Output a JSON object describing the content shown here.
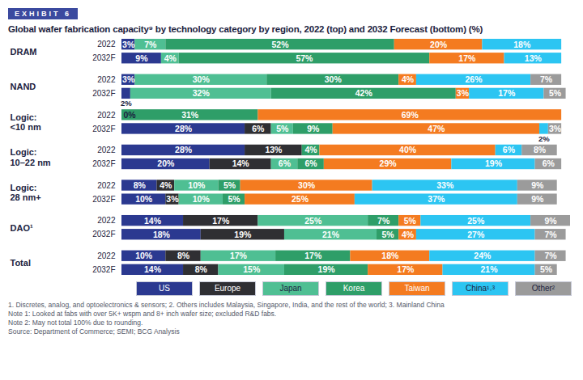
{
  "chart_data": {
    "type": "bar",
    "orientation": "horizontal",
    "stacked": true,
    "data_labels": true,
    "tick_labels": false,
    "legend": "bottom",
    "exhibit": "EXHIBIT 6",
    "title": "Global wafer fabrication capacity⁹ by technology category by region, 2022 (top) and 2032 Forecast (bottom) (%)",
    "groups": [
      "DRAM",
      "NAND",
      "Logic:\n<10 nm",
      "Logic:\n10–22 nm",
      "Logic:\n28 nm+",
      "DAO¹",
      "Total"
    ],
    "categories": [
      "2022",
      "2032F",
      "2022",
      "2032F",
      "2022",
      "2032F",
      "2022",
      "2032F",
      "2022",
      "2032F",
      "2022",
      "2032F",
      "2022",
      "2032F"
    ],
    "xlim": [
      0,
      102
    ],
    "series": [
      {
        "name": "US",
        "color": "#2b3990",
        "values": [
          3,
          9,
          3,
          2,
          0,
          28,
          28,
          20,
          8,
          10,
          14,
          18,
          10,
          14
        ],
        "value_labels": [
          "3%",
          "9%",
          "3%",
          "2%",
          "0%",
          "28%",
          "28%",
          "20%",
          "8%",
          "10%",
          "14%",
          "18%",
          "10%",
          "14%"
        ]
      },
      {
        "name": "Europe",
        "color": "#2f2f33",
        "values": [
          null,
          null,
          null,
          null,
          null,
          6,
          13,
          14,
          4,
          3,
          17,
          19,
          8,
          8
        ],
        "value_labels": [
          null,
          null,
          null,
          null,
          null,
          "6%",
          "13%",
          "14%",
          "4%",
          "3%",
          "17%",
          "19%",
          "8%",
          "8%"
        ]
      },
      {
        "name": "Japan",
        "color": "#4fbf93",
        "values": [
          7,
          4,
          30,
          32,
          null,
          5,
          null,
          6,
          10,
          10,
          25,
          21,
          17,
          15
        ],
        "value_labels": [
          "7%",
          "4%",
          "30%",
          "32%",
          null,
          "5%",
          null,
          "6%",
          "10%",
          "10%",
          "25%",
          "21%",
          "17%",
          "15%"
        ]
      },
      {
        "name": "Korea",
        "color": "#2e9e68",
        "values": [
          52,
          57,
          30,
          42,
          31,
          9,
          4,
          6,
          5,
          5,
          7,
          5,
          17,
          19
        ],
        "value_labels": [
          "52%",
          "57%",
          "30%",
          "42%",
          "31%",
          "9%",
          "4%",
          "6%",
          "5%",
          "5%",
          "7%",
          "5%",
          "17%",
          "19%"
        ]
      },
      {
        "name": "Taiwan",
        "color": "#f47b20",
        "values": [
          20,
          17,
          4,
          3,
          69,
          47,
          40,
          29,
          30,
          25,
          5,
          4,
          18,
          17
        ],
        "value_labels": [
          "20%",
          "17%",
          "4%",
          "3%",
          "69%",
          "47%",
          "40%",
          "29%",
          "30%",
          "25%",
          "5%",
          "4%",
          "18%",
          "17%"
        ]
      },
      {
        "name": "China¹˒³",
        "color": "#2cc5f2",
        "values": [
          18,
          13,
          26,
          17,
          null,
          2,
          6,
          19,
          33,
          37,
          25,
          27,
          24,
          21
        ],
        "value_labels": [
          "18%",
          "13%",
          "26%",
          "17%",
          null,
          "2%",
          "6%",
          "19%",
          "33%",
          "37%",
          "25%",
          "27%",
          "24%",
          "21%"
        ]
      },
      {
        "name": "Other²",
        "color": "#9b9b9b",
        "values": [
          null,
          null,
          7,
          5,
          null,
          3,
          8,
          6,
          9,
          9,
          9,
          7,
          7,
          5
        ],
        "value_labels": [
          null,
          null,
          "7%",
          "5%",
          null,
          "3%",
          "8%",
          "6%",
          "9%",
          "9%",
          "9%",
          "7%",
          "7%",
          "5%"
        ]
      }
    ],
    "notes": [
      "1. Discretes, analog, and optoelectronics & sensors; 2. Others includes Malaysia, Singapore, India, and the rest of the world; 3. Mainland China",
      "Note 1: Looked at fabs with over 5K+ wspm and 8+ inch wafer size; excluded R&D fabs.",
      "Note 2: May not total 100% due to rounding.",
      "Source: Department of Commerce; SEMI; BCG Analysis"
    ]
  }
}
